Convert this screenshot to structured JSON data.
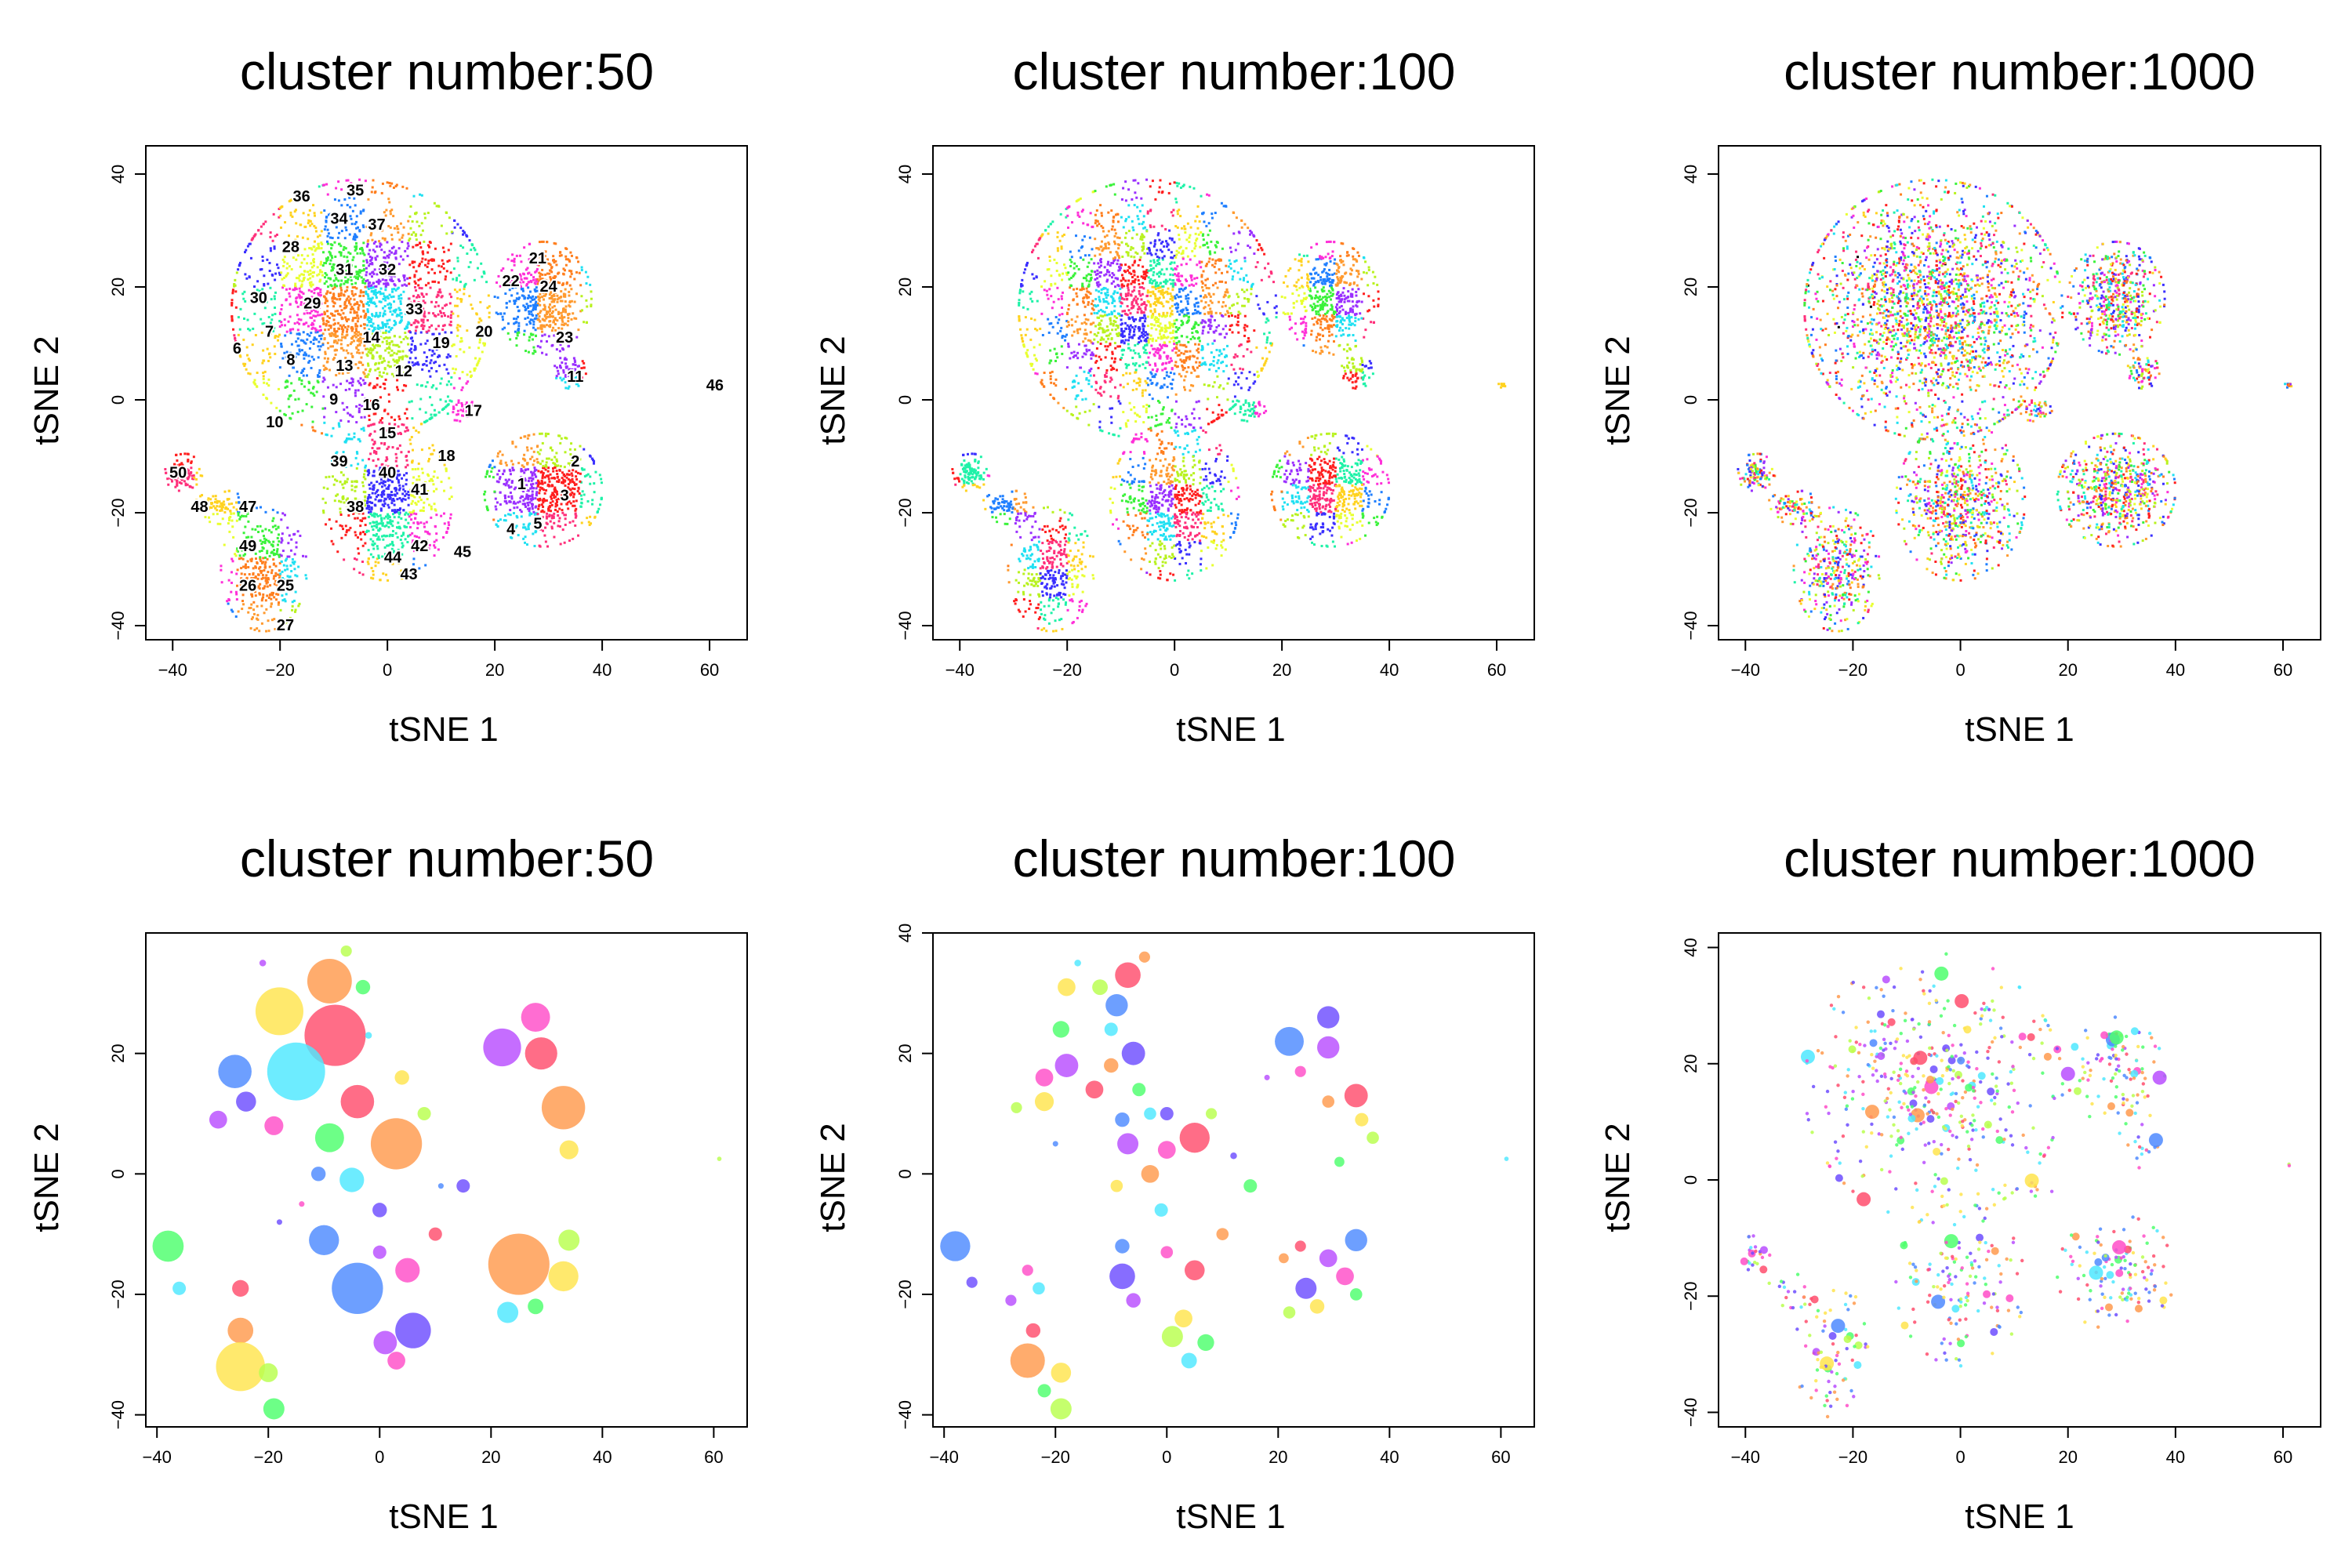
{
  "figure": {
    "colors": {
      "palette": [
        "#ff1f1f",
        "#ff7f1f",
        "#ffd21f",
        "#b8f21f",
        "#3af23a",
        "#1ff2a8",
        "#1fe0f2",
        "#1f7fff",
        "#3a2fff",
        "#9a2fff",
        "#ff2fd8",
        "#ff2f7a",
        "#ff9a2f",
        "#e8ff2f"
      ],
      "bubble_palette": [
        "#ff4d6d",
        "#ff9a4d",
        "#ffe44d",
        "#b8ff4d",
        "#4dff6d",
        "#4de8ff",
        "#4d8aff",
        "#6d4dff",
        "#b84dff",
        "#ff4dc8"
      ]
    },
    "chart_data": [
      {
        "type": "scatter",
        "id": "p1",
        "title": "cluster number:50",
        "xlabel": "tSNE 1",
        "ylabel": "tSNE 2",
        "xlim": [
          -45,
          67
        ],
        "ylim": [
          -42.5,
          45
        ],
        "xticks": [
          -40,
          -20,
          0,
          20,
          40,
          60
        ],
        "yticks": [
          -40,
          -20,
          0,
          20,
          40
        ],
        "grid": false,
        "legend": "none",
        "clusters_per_panel": 50,
        "cluster_labels": [
          {
            "text": "36",
            "x": -16,
            "y": 36
          },
          {
            "text": "35",
            "x": -6,
            "y": 37
          },
          {
            "text": "34",
            "x": -9,
            "y": 32
          },
          {
            "text": "37",
            "x": -2,
            "y": 31
          },
          {
            "text": "28",
            "x": -18,
            "y": 27
          },
          {
            "text": "31",
            "x": -8,
            "y": 23
          },
          {
            "text": "32",
            "x": 0,
            "y": 23
          },
          {
            "text": "30",
            "x": -24,
            "y": 18
          },
          {
            "text": "29",
            "x": -14,
            "y": 17
          },
          {
            "text": "33",
            "x": 5,
            "y": 16
          },
          {
            "text": "7",
            "x": -22,
            "y": 12
          },
          {
            "text": "14",
            "x": -3,
            "y": 11
          },
          {
            "text": "19",
            "x": 10,
            "y": 10
          },
          {
            "text": "20",
            "x": 18,
            "y": 12
          },
          {
            "text": "6",
            "x": -28,
            "y": 9
          },
          {
            "text": "8",
            "x": -18,
            "y": 7
          },
          {
            "text": "13",
            "x": -8,
            "y": 6
          },
          {
            "text": "12",
            "x": 3,
            "y": 5
          },
          {
            "text": "9",
            "x": -10,
            "y": 0
          },
          {
            "text": "16",
            "x": -3,
            "y": -1
          },
          {
            "text": "17",
            "x": 16,
            "y": -2
          },
          {
            "text": "10",
            "x": -21,
            "y": -4
          },
          {
            "text": "15",
            "x": 0,
            "y": -6
          },
          {
            "text": "18",
            "x": 11,
            "y": -10
          },
          {
            "text": "21",
            "x": 28,
            "y": 25
          },
          {
            "text": "22",
            "x": 23,
            "y": 21
          },
          {
            "text": "24",
            "x": 30,
            "y": 20
          },
          {
            "text": "23",
            "x": 33,
            "y": 11
          },
          {
            "text": "11",
            "x": 35,
            "y": 4
          },
          {
            "text": "46",
            "x": 61,
            "y": 2.5
          },
          {
            "text": "50",
            "x": -39,
            "y": -13
          },
          {
            "text": "39",
            "x": -9,
            "y": -11
          },
          {
            "text": "40",
            "x": 0,
            "y": -13
          },
          {
            "text": "41",
            "x": 6,
            "y": -16
          },
          {
            "text": "2",
            "x": 35,
            "y": -11
          },
          {
            "text": "1",
            "x": 25,
            "y": -15
          },
          {
            "text": "3",
            "x": 33,
            "y": -17
          },
          {
            "text": "48",
            "x": -35,
            "y": -19
          },
          {
            "text": "47",
            "x": -26,
            "y": -19
          },
          {
            "text": "38",
            "x": -6,
            "y": -19
          },
          {
            "text": "5",
            "x": 28,
            "y": -22
          },
          {
            "text": "4",
            "x": 23,
            "y": -23
          },
          {
            "text": "42",
            "x": 6,
            "y": -26
          },
          {
            "text": "44",
            "x": 1,
            "y": -28
          },
          {
            "text": "45",
            "x": 14,
            "y": -27
          },
          {
            "text": "49",
            "x": -26,
            "y": -26
          },
          {
            "text": "43",
            "x": 4,
            "y": -31
          },
          {
            "text": "26",
            "x": -26,
            "y": -33
          },
          {
            "text": "25",
            "x": -19,
            "y": -33
          },
          {
            "text": "27",
            "x": -19,
            "y": -40
          }
        ]
      },
      {
        "type": "scatter",
        "id": "p2",
        "title": "cluster number:100",
        "xlabel": "tSNE 1",
        "ylabel": "tSNE 2",
        "xlim": [
          -45,
          67
        ],
        "ylim": [
          -42.5,
          45
        ],
        "xticks": [
          -40,
          -20,
          0,
          20,
          40,
          60
        ],
        "yticks": [
          -40,
          -20,
          0,
          20,
          40
        ],
        "grid": false,
        "legend": "none",
        "clusters_per_panel": 100
      },
      {
        "type": "scatter",
        "id": "p3",
        "title": "cluster number:1000",
        "xlabel": "tSNE 1",
        "ylabel": "tSNE 2",
        "xlim": [
          -45,
          67
        ],
        "ylim": [
          -42.5,
          45
        ],
        "xticks": [
          -40,
          -20,
          0,
          20,
          40,
          60
        ],
        "yticks": [
          -40,
          -20,
          0,
          20,
          40
        ],
        "grid": false,
        "legend": "none",
        "clusters_per_panel": 1000
      },
      {
        "type": "scatter",
        "id": "p4",
        "title": "cluster number:50",
        "xlabel": "tSNE 1",
        "ylabel": "tSNE 2",
        "xlim": [
          -42,
          66
        ],
        "ylim": [
          -42,
          40
        ],
        "xticks": [
          -40,
          -20,
          0,
          20,
          40,
          60
        ],
        "yticks": [
          -40,
          -20,
          0,
          20
        ],
        "grid": false,
        "legend": "none",
        "bubbles": [
          {
            "x": -8,
            "y": 23,
            "r": 5.5
          },
          {
            "x": -9,
            "y": 32,
            "r": 4
          },
          {
            "x": -18,
            "y": 27,
            "r": 4.3
          },
          {
            "x": -6,
            "y": 37,
            "r": 1
          },
          {
            "x": -3,
            "y": 31,
            "r": 1.3
          },
          {
            "x": -15,
            "y": 17,
            "r": 5.2
          },
          {
            "x": -26,
            "y": 17,
            "r": 3
          },
          {
            "x": -24,
            "y": 12,
            "r": 1.8
          },
          {
            "x": -29,
            "y": 9,
            "r": 1.6
          },
          {
            "x": -19,
            "y": 8,
            "r": 1.7
          },
          {
            "x": -4,
            "y": 12,
            "r": 3
          },
          {
            "x": 3,
            "y": 5,
            "r": 4.6
          },
          {
            "x": 4,
            "y": 16,
            "r": 1.3
          },
          {
            "x": 8,
            "y": 10,
            "r": 1.2
          },
          {
            "x": -9,
            "y": 6,
            "r": 2.6
          },
          {
            "x": -5,
            "y": -1,
            "r": 2.2
          },
          {
            "x": -11,
            "y": 0,
            "r": 1.3
          },
          {
            "x": 15,
            "y": -2,
            "r": 1.2
          },
          {
            "x": 22,
            "y": 21,
            "r": 3.4
          },
          {
            "x": 28,
            "y": 26,
            "r": 2.6
          },
          {
            "x": 29,
            "y": 20,
            "r": 2.9
          },
          {
            "x": 33,
            "y": 11,
            "r": 3.9
          },
          {
            "x": 34,
            "y": 4,
            "r": 1.7
          },
          {
            "x": 61,
            "y": 2.5,
            "r": 0.4
          },
          {
            "x": -38,
            "y": -12,
            "r": 2.8
          },
          {
            "x": -36,
            "y": -19,
            "r": 1.2
          },
          {
            "x": -10,
            "y": -11,
            "r": 2.7
          },
          {
            "x": 0,
            "y": -6,
            "r": 1.3
          },
          {
            "x": 0,
            "y": -13,
            "r": 1.2
          },
          {
            "x": 5,
            "y": -16,
            "r": 2.2
          },
          {
            "x": 10,
            "y": -10,
            "r": 1.2
          },
          {
            "x": 25,
            "y": -15,
            "r": 5.5
          },
          {
            "x": 33,
            "y": -17,
            "r": 2.7
          },
          {
            "x": 34,
            "y": -11,
            "r": 1.9
          },
          {
            "x": 28,
            "y": -22,
            "r": 1.4
          },
          {
            "x": 23,
            "y": -23,
            "r": 1.9
          },
          {
            "x": -4,
            "y": -19,
            "r": 4.6
          },
          {
            "x": 6,
            "y": -26,
            "r": 3.2
          },
          {
            "x": 1,
            "y": -28,
            "r": 2.1
          },
          {
            "x": 3,
            "y": -31,
            "r": 1.6
          },
          {
            "x": -25,
            "y": -19,
            "r": 1.5
          },
          {
            "x": -25,
            "y": -26,
            "r": 2.3
          },
          {
            "x": -25,
            "y": -32,
            "r": 4.4
          },
          {
            "x": -20,
            "y": -33,
            "r": 1.7
          },
          {
            "x": -19,
            "y": -39,
            "r": 1.9
          },
          {
            "x": -2,
            "y": 23,
            "r": 0.6
          },
          {
            "x": 11,
            "y": -2,
            "r": 0.5
          },
          {
            "x": -18,
            "y": -8,
            "r": 0.5
          },
          {
            "x": -21,
            "y": 35,
            "r": 0.6
          },
          {
            "x": -14,
            "y": -5,
            "r": 0.5
          }
        ]
      },
      {
        "type": "scatter",
        "id": "p5",
        "title": "cluster number:100",
        "xlabel": "tSNE 1",
        "ylabel": "tSNE 2",
        "xlim": [
          -42,
          66
        ],
        "ylim": [
          -42,
          40
        ],
        "xticks": [
          -40,
          -20,
          0,
          20,
          40,
          60
        ],
        "yticks": [
          -40,
          -20,
          0,
          20,
          40
        ],
        "grid": false,
        "legend": "none",
        "bubbles": [
          {
            "x": -7,
            "y": 33,
            "r": 2.3
          },
          {
            "x": -4,
            "y": 36,
            "r": 1
          },
          {
            "x": -18,
            "y": 31,
            "r": 1.6
          },
          {
            "x": -12,
            "y": 31,
            "r": 1.4
          },
          {
            "x": -19,
            "y": 24,
            "r": 1.5
          },
          {
            "x": -10,
            "y": 24,
            "r": 1.2
          },
          {
            "x": -9,
            "y": 28,
            "r": 2
          },
          {
            "x": -6,
            "y": 20,
            "r": 2.1
          },
          {
            "x": -18,
            "y": 18,
            "r": 2.1
          },
          {
            "x": -22,
            "y": 16,
            "r": 1.6
          },
          {
            "x": -13,
            "y": 14,
            "r": 1.6
          },
          {
            "x": -10,
            "y": 18,
            "r": 1.3
          },
          {
            "x": -22,
            "y": 12,
            "r": 1.7
          },
          {
            "x": -27,
            "y": 11,
            "r": 1
          },
          {
            "x": -5,
            "y": 14,
            "r": 1.2
          },
          {
            "x": -3,
            "y": 10,
            "r": 1.1
          },
          {
            "x": -8,
            "y": 9,
            "r": 1.3
          },
          {
            "x": 0,
            "y": 10,
            "r": 1.2
          },
          {
            "x": -7,
            "y": 5,
            "r": 1.9
          },
          {
            "x": 0,
            "y": 4,
            "r": 1.6
          },
          {
            "x": 5,
            "y": 6,
            "r": 2.7
          },
          {
            "x": -3,
            "y": 0,
            "r": 1.6
          },
          {
            "x": -9,
            "y": -2,
            "r": 1.1
          },
          {
            "x": 8,
            "y": 10,
            "r": 1
          },
          {
            "x": 15,
            "y": -2,
            "r": 1.2
          },
          {
            "x": -1,
            "y": -6,
            "r": 1.2
          },
          {
            "x": -8,
            "y": -12,
            "r": 1.3
          },
          {
            "x": -8,
            "y": -17,
            "r": 2.3
          },
          {
            "x": -6,
            "y": -21,
            "r": 1.3
          },
          {
            "x": 0,
            "y": -13,
            "r": 1.1
          },
          {
            "x": 5,
            "y": -16,
            "r": 1.8
          },
          {
            "x": 10,
            "y": -10,
            "r": 1.1
          },
          {
            "x": 3,
            "y": -24,
            "r": 1.6
          },
          {
            "x": 1,
            "y": -27,
            "r": 1.9
          },
          {
            "x": 7,
            "y": -28,
            "r": 1.5
          },
          {
            "x": 4,
            "y": -31,
            "r": 1.4
          },
          {
            "x": 22,
            "y": 22,
            "r": 2.6
          },
          {
            "x": 29,
            "y": 26,
            "r": 2
          },
          {
            "x": 29,
            "y": 21,
            "r": 2
          },
          {
            "x": 24,
            "y": 17,
            "r": 1
          },
          {
            "x": 34,
            "y": 13,
            "r": 2.1
          },
          {
            "x": 29,
            "y": 12,
            "r": 1.1
          },
          {
            "x": 35,
            "y": 9,
            "r": 1.2
          },
          {
            "x": 37,
            "y": 6,
            "r": 1.1
          },
          {
            "x": 31,
            "y": 2,
            "r": 0.9
          },
          {
            "x": 61,
            "y": 2.5,
            "r": 0.4
          },
          {
            "x": -38,
            "y": -12,
            "r": 2.7
          },
          {
            "x": -35,
            "y": -18,
            "r": 1
          },
          {
            "x": -28,
            "y": -21,
            "r": 1
          },
          {
            "x": -25,
            "y": -16,
            "r": 1
          },
          {
            "x": -24,
            "y": -26,
            "r": 1.3
          },
          {
            "x": -25,
            "y": -31,
            "r": 3.1
          },
          {
            "x": -19,
            "y": -33,
            "r": 1.8
          },
          {
            "x": -19,
            "y": -39,
            "r": 1.9
          },
          {
            "x": -22,
            "y": -36,
            "r": 1.2
          },
          {
            "x": -23,
            "y": -19,
            "r": 1.1
          },
          {
            "x": 34,
            "y": -11,
            "r": 2
          },
          {
            "x": 25,
            "y": -19,
            "r": 1.9
          },
          {
            "x": 29,
            "y": -14,
            "r": 1.6
          },
          {
            "x": 32,
            "y": -17,
            "r": 1.6
          },
          {
            "x": 24,
            "y": -12,
            "r": 1
          },
          {
            "x": 21,
            "y": -14,
            "r": 0.9
          },
          {
            "x": 27,
            "y": -22,
            "r": 1.3
          },
          {
            "x": 22,
            "y": -23,
            "r": 1.1
          },
          {
            "x": 34,
            "y": -20,
            "r": 1.1
          },
          {
            "x": -16,
            "y": 35,
            "r": 0.6
          },
          {
            "x": -20,
            "y": 5,
            "r": 0.5
          },
          {
            "x": 12,
            "y": 3,
            "r": 0.6
          },
          {
            "x": 18,
            "y": 16,
            "r": 0.5
          }
        ]
      },
      {
        "type": "scatter",
        "id": "p6",
        "title": "cluster number:1000",
        "xlabel": "tSNE 1",
        "ylabel": "tSNE 2",
        "xlim": [
          -45,
          67
        ],
        "ylim": [
          -42.5,
          42.5
        ],
        "xticks": [
          -40,
          -20,
          0,
          20,
          40,
          60
        ],
        "yticks": [
          -40,
          -20,
          0,
          20,
          40
        ],
        "grid": false,
        "legend": "none",
        "clusters_per_panel": 1000
      }
    ]
  }
}
